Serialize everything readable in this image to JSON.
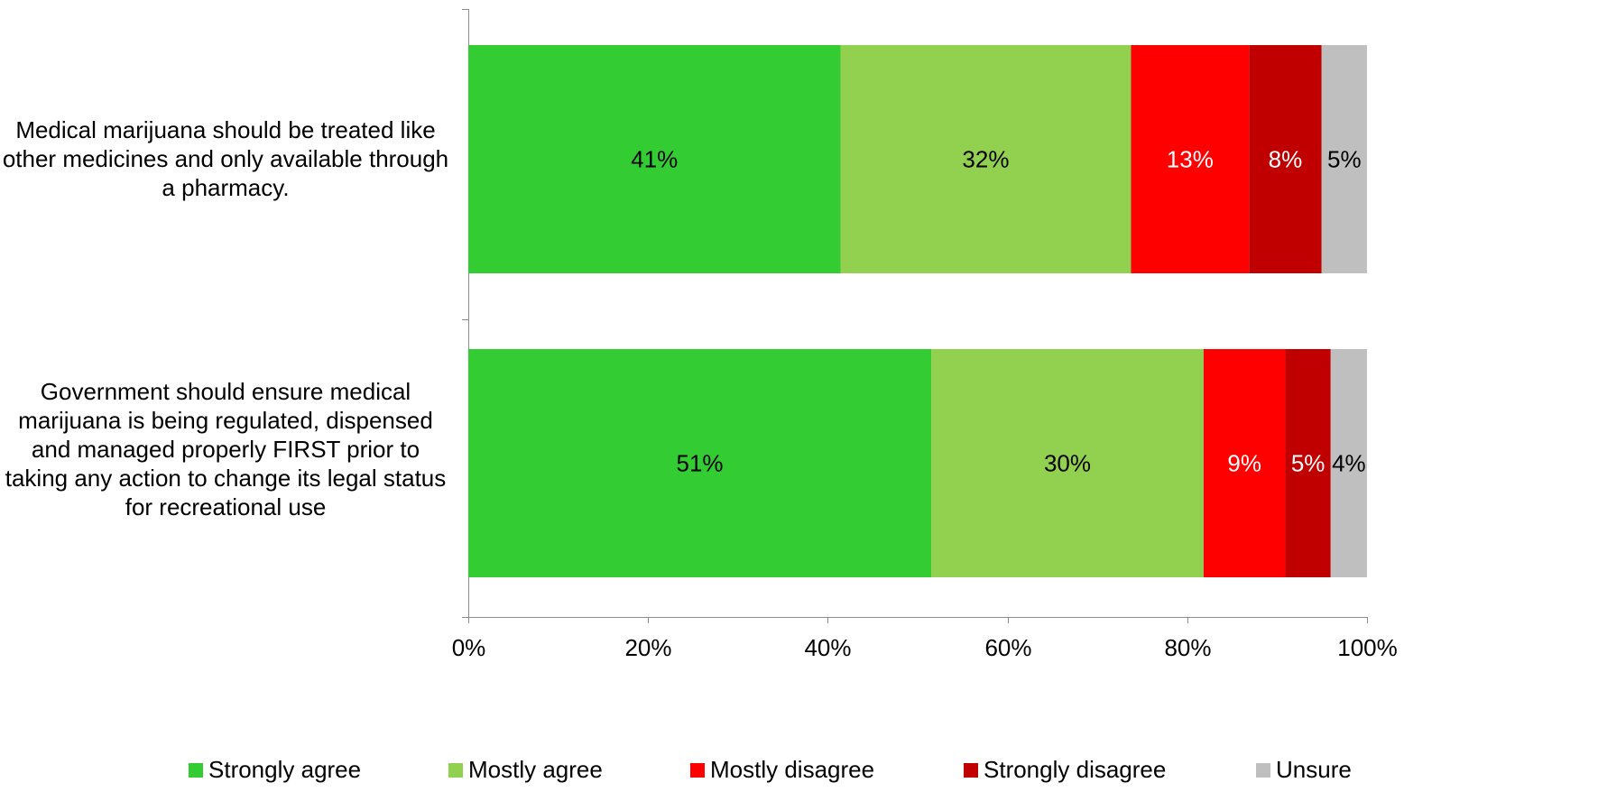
{
  "chart_data": {
    "type": "bar",
    "orientation": "horizontal",
    "stacked": true,
    "title": "",
    "xlabel": "",
    "ylabel": "",
    "xlim": [
      0,
      100
    ],
    "x_ticks": [
      "0%",
      "20%",
      "40%",
      "60%",
      "80%",
      "100%"
    ],
    "grid": false,
    "legend_position": "bottom",
    "categories": [
      "Medical marijuana should be treated like other medicines and only available through a pharmacy.",
      "Government should ensure medical marijuana is being regulated, dispensed and managed properly FIRST prior to taking any action to change its legal status for recreational use"
    ],
    "series": [
      {
        "name": "Strongly agree",
        "color": "#33cc33",
        "label_color": "#000000",
        "values": [
          41,
          51
        ],
        "labels": [
          "41%",
          "51%"
        ]
      },
      {
        "name": "Mostly agree",
        "color": "#92d050",
        "label_color": "#000000",
        "values": [
          32,
          30
        ],
        "labels": [
          "32%",
          "30%"
        ]
      },
      {
        "name": "Mostly disagree",
        "color": "#ff0000",
        "label_color": "#ffffff",
        "values": [
          13,
          9
        ],
        "labels": [
          "13%",
          "9%"
        ]
      },
      {
        "name": "Strongly disagree",
        "color": "#c00000",
        "label_color": "#ffffff",
        "values": [
          8,
          5
        ],
        "labels": [
          "8%",
          "5%"
        ]
      },
      {
        "name": "Unsure",
        "color": "#bfbfbf",
        "label_color": "#000000",
        "values": [
          5,
          4
        ],
        "labels": [
          "5%",
          "4%"
        ]
      }
    ]
  }
}
